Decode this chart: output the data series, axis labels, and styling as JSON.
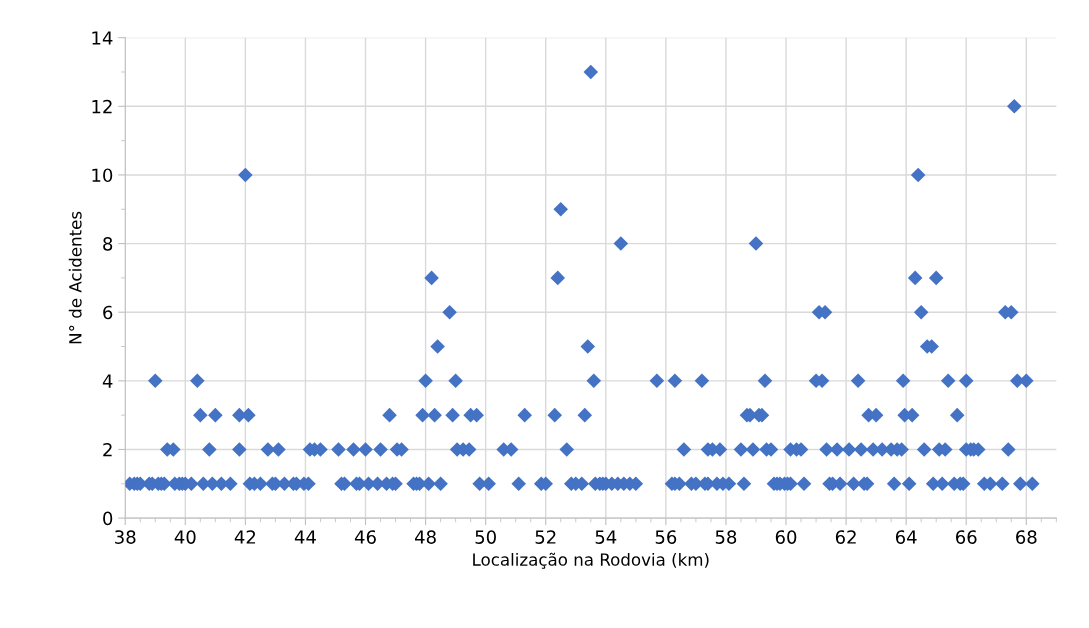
{
  "chart_data": {
    "type": "scatter",
    "xlabel": "Localização na Rodovia (km)",
    "ylabel": "N° de Acidentes",
    "xlim": [
      38,
      69
    ],
    "xticks": [
      38,
      40,
      42,
      44,
      46,
      48,
      50,
      52,
      54,
      56,
      58,
      60,
      62,
      64,
      66,
      68
    ],
    "ylim": [
      0,
      14
    ],
    "yticks": [
      0,
      2,
      4,
      6,
      8,
      10,
      12,
      14
    ],
    "grid": true,
    "marker": "diamond",
    "series": [
      {
        "color": "#4472c4",
        "x": [
          39.0,
          40.4,
          40.5,
          41.0,
          41.8,
          42.1,
          42.0,
          39.4,
          39.6,
          40.8,
          41.8,
          42.75,
          43.1,
          44.15,
          44.3,
          44.5,
          45.1,
          45.6,
          46.0,
          46.5,
          46.8,
          47.05,
          47.2,
          38.15,
          38.3,
          38.4,
          38.5,
          38.8,
          38.9,
          39.1,
          39.2,
          39.3,
          39.65,
          39.8,
          39.9,
          40.0,
          40.2,
          40.6,
          40.9,
          41.2,
          41.5,
          42.15,
          42.3,
          42.5,
          42.9,
          43.0,
          43.3,
          43.6,
          43.7,
          43.95,
          44.1,
          45.2,
          45.3,
          45.7,
          45.8,
          46.1,
          46.4,
          46.7,
          46.9,
          47.0,
          47.6,
          47.7,
          47.8,
          48.1,
          48.5,
          49.8,
          50.1,
          51.1,
          51.85,
          52.0,
          52.85,
          53.0,
          53.2,
          53.65,
          53.8,
          53.9,
          54.0,
          54.2,
          54.4,
          54.6,
          54.8,
          55.0,
          56.2,
          56.3,
          56.45,
          56.85,
          57.0,
          57.3,
          57.4,
          57.7,
          57.9,
          58.1,
          53.5,
          52.5,
          54.5,
          48.2,
          52.4,
          48.8,
          48.4,
          53.4,
          48.0,
          49.0,
          53.6,
          55.7,
          56.3,
          57.2,
          47.9,
          48.3,
          48.9,
          49.5,
          49.7,
          51.3,
          52.3,
          53.3,
          49.05,
          49.25,
          49.45,
          50.6,
          50.85,
          52.7,
          56.6,
          57.4,
          57.55,
          57.8,
          67.6,
          64.4,
          59.0,
          64.3,
          65.0,
          61.1,
          61.3,
          64.5,
          67.3,
          67.5,
          64.7,
          64.85,
          59.3,
          61.0,
          61.2,
          62.4,
          63.9,
          65.4,
          66.0,
          67.7,
          68.0,
          58.7,
          58.8,
          59.1,
          59.2,
          62.75,
          63.0,
          63.95,
          64.2,
          65.7,
          58.5,
          58.9,
          59.35,
          59.5,
          60.15,
          60.35,
          60.5,
          61.35,
          61.7,
          62.1,
          62.5,
          62.9,
          63.2,
          63.5,
          63.7,
          63.85,
          64.6,
          65.1,
          65.3,
          66.0,
          66.15,
          66.25,
          66.4,
          67.4,
          58.6,
          59.6,
          59.7,
          59.8,
          59.95,
          60.05,
          60.15,
          60.6,
          61.45,
          61.55,
          61.8,
          62.25,
          62.6,
          62.7,
          63.6,
          64.1,
          64.9,
          65.2,
          65.6,
          65.8,
          65.9,
          66.6,
          66.8,
          67.2,
          67.8,
          68.2
        ],
        "values": [
          4,
          4,
          3,
          3,
          3,
          3,
          10,
          2,
          2,
          2,
          2,
          2,
          2,
          2,
          2,
          2,
          2,
          2,
          2,
          2,
          3,
          2,
          2,
          1,
          1,
          1,
          1,
          1,
          1,
          1,
          1,
          1,
          1,
          1,
          1,
          1,
          1,
          1,
          1,
          1,
          1,
          1,
          1,
          1,
          1,
          1,
          1,
          1,
          1,
          1,
          1,
          1,
          1,
          1,
          1,
          1,
          1,
          1,
          1,
          1,
          1,
          1,
          1,
          1,
          1,
          1,
          1,
          1,
          1,
          1,
          1,
          1,
          1,
          1,
          1,
          1,
          1,
          1,
          1,
          1,
          1,
          1,
          1,
          1,
          1,
          1,
          1,
          1,
          1,
          1,
          1,
          1,
          13,
          9,
          8,
          7,
          7,
          6,
          5,
          5,
          4,
          4,
          4,
          4,
          4,
          4,
          3,
          3,
          3,
          3,
          3,
          3,
          3,
          3,
          2,
          2,
          2,
          2,
          2,
          2,
          2,
          2,
          2,
          2,
          12,
          10,
          8,
          7,
          7,
          6,
          6,
          6,
          6,
          6,
          5,
          5,
          4,
          4,
          4,
          4,
          4,
          4,
          4,
          4,
          4,
          3,
          3,
          3,
          3,
          3,
          3,
          3,
          3,
          3,
          2,
          2,
          2,
          2,
          2,
          2,
          2,
          2,
          2,
          2,
          2,
          2,
          2,
          2,
          2,
          2,
          2,
          2,
          2,
          2,
          2,
          2,
          2,
          2,
          1,
          1,
          1,
          1,
          1,
          1,
          1,
          1,
          1,
          1,
          1,
          1,
          1,
          1,
          1,
          1,
          1,
          1,
          1,
          1,
          1,
          1,
          1,
          1,
          1,
          1
        ]
      }
    ]
  }
}
